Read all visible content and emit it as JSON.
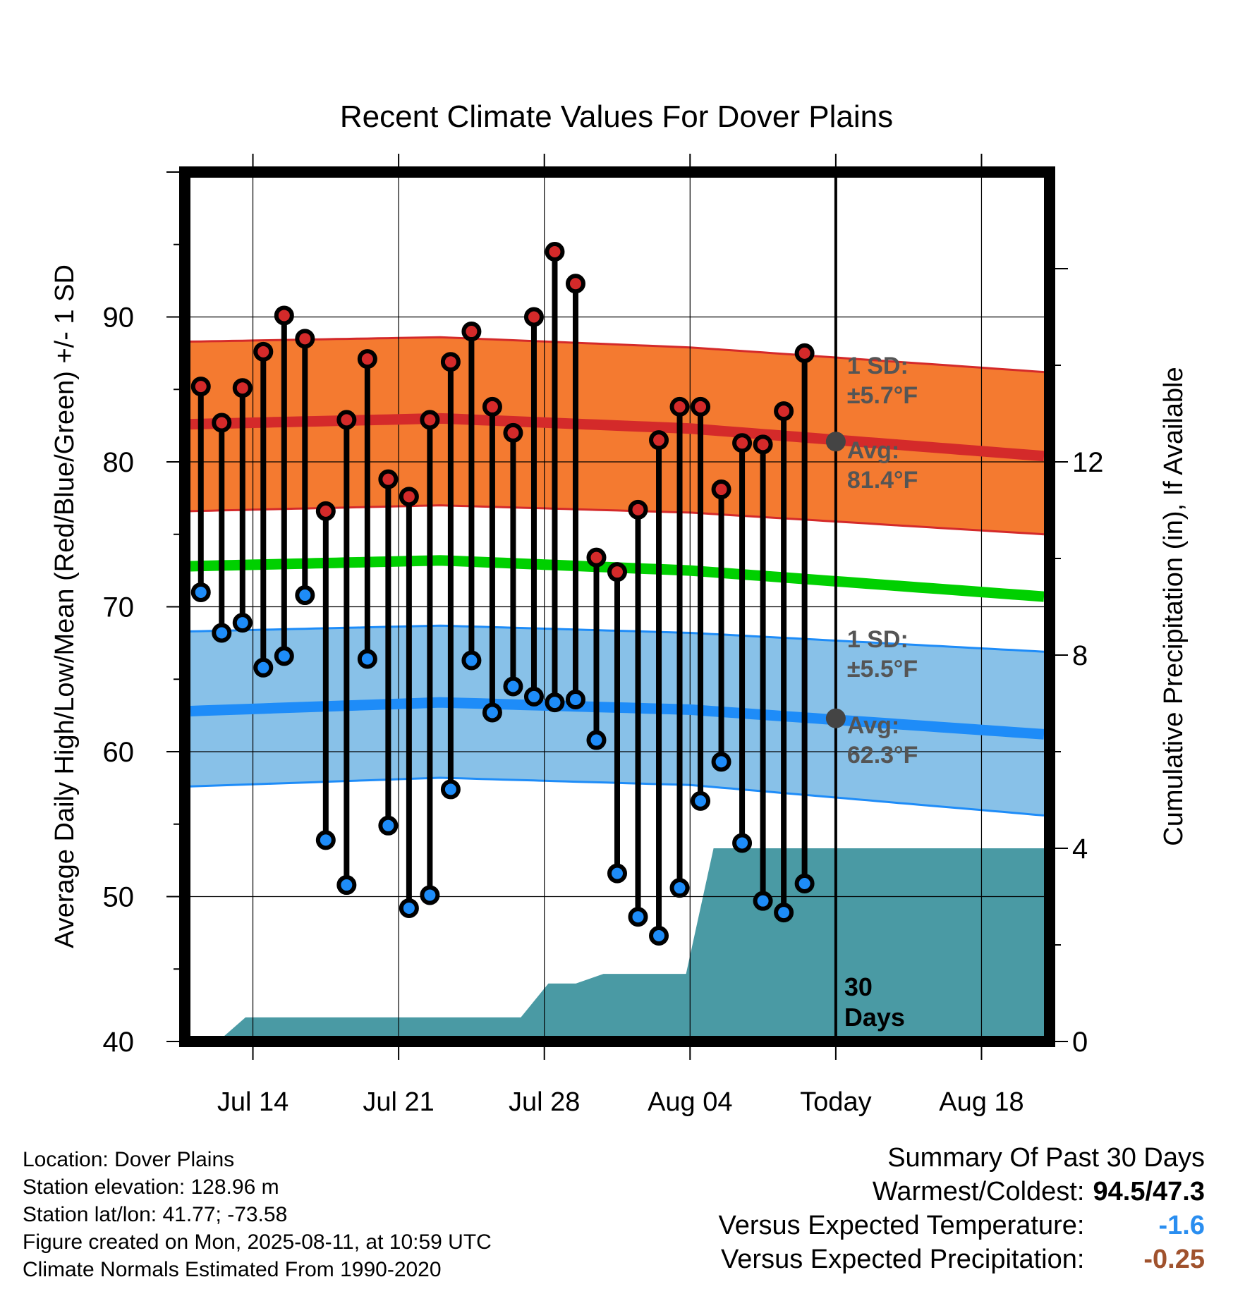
{
  "chart_data": {
    "type": "line",
    "title": "Recent Climate Values For Dover Plains",
    "xlabel": "Day",
    "ylabel_left": "Average Daily High/Low/Mean (Red/Blue/Green) +/- 1 SD",
    "ylabel_right": "Cumulative Precipitation (in), If Available",
    "ylim_left": [
      40,
      100
    ],
    "ylim_right": [
      0,
      18
    ],
    "left_ticks": [
      "40",
      "50",
      "60",
      "70",
      "80",
      "90"
    ],
    "right_ticks": [
      "0",
      "4",
      "8",
      "12"
    ],
    "x_ticks": [
      "Jul 14",
      "Jul 21",
      "Jul 28",
      "Aug 04",
      "Today",
      "Aug 18"
    ],
    "x_start_date": "2025-07-11",
    "x_end_date": "2025-08-21",
    "today_date": "2025-08-11",
    "days_label": "30\nDays",
    "daily_highs": [
      85.2,
      82.7,
      85.1,
      87.6,
      90.1,
      88.5,
      76.6,
      82.9,
      87.1,
      78.8,
      77.6,
      82.9,
      86.9,
      89.0,
      83.8,
      82.0,
      90.0,
      94.5,
      92.3,
      73.4,
      72.4,
      76.7,
      81.5,
      83.8,
      83.8,
      78.1,
      81.3,
      81.2,
      83.5,
      87.5
    ],
    "daily_lows": [
      71.0,
      68.2,
      68.9,
      65.8,
      66.6,
      70.8,
      53.9,
      50.8,
      66.4,
      54.9,
      49.2,
      50.1,
      57.4,
      66.3,
      62.7,
      64.5,
      63.8,
      63.4,
      63.6,
      60.8,
      51.6,
      48.6,
      47.3,
      50.6,
      56.6,
      59.3,
      53.7,
      49.7,
      48.9,
      50.9
    ],
    "normal_high_mean": [
      82.6,
      83.0,
      82.3,
      80.4
    ],
    "normal_high_upper": [
      88.3,
      88.6,
      87.9,
      86.2
    ],
    "normal_high_lower": [
      76.6,
      77.0,
      76.5,
      75.0
    ],
    "normal_mean": [
      72.8,
      73.2,
      72.5,
      70.7
    ],
    "normal_low_mean": [
      62.8,
      63.4,
      62.9,
      61.2
    ],
    "normal_low_upper": [
      68.3,
      68.7,
      68.2,
      66.9
    ],
    "normal_low_lower": [
      57.6,
      58.2,
      57.7,
      55.6
    ],
    "normal_curve_days": [
      0,
      12,
      24,
      41
    ],
    "precip_cumulative": [
      0,
      0,
      0.5,
      0.5,
      0.5,
      0.5,
      0.5,
      0.5,
      0.5,
      0.5,
      0.5,
      0.5,
      0.5,
      1.2,
      1.2,
      1.4,
      1.4,
      1.4,
      1.4,
      4.0,
      4.0,
      4.0,
      4.0,
      4.0,
      4.0,
      4.0,
      4.0,
      4.0,
      4.0,
      4.0,
      4.0,
      4.0
    ],
    "annotations": {
      "high_sd": [
        "1 SD:",
        "±5.7°F"
      ],
      "high_avg": [
        "Avg:",
        "81.4°F"
      ],
      "low_sd": [
        "1 SD:",
        "±5.5°F"
      ],
      "low_avg": [
        "Avg:",
        "62.3°F"
      ],
      "high_avg_value": 81.4,
      "low_avg_value": 62.3
    },
    "colors": {
      "high_band": "#f47a30",
      "high_line": "#d42a2a",
      "mean_line": "#00d000",
      "low_band": "#88c1e8",
      "low_line": "#1e8cf8",
      "precip": "#4a9aa4",
      "high_dot": "#d42a2a",
      "low_dot": "#1e8cf8",
      "annotation": "#555555"
    }
  },
  "info": {
    "location": "Location: Dover Plains",
    "elevation": "Station elevation: 128.96 m",
    "latlon": "Station lat/lon: 41.77; -73.58",
    "created": "Figure created on Mon, 2025-08-11, at 10:59 UTC",
    "normals": "Climate Normals Estimated From 1990-2020"
  },
  "summary": {
    "title": "Summary Of Past 30 Days",
    "warmest_label": "Warmest/Coldest:",
    "warmest_value": "94.5/47.3",
    "temp_label": "Versus Expected Temperature:",
    "temp_value": "-1.6",
    "temp_color": "#2a8ef0",
    "precip_label": "Versus Expected Precipitation:",
    "precip_value": "-0.25",
    "precip_color": "#a0522d"
  }
}
